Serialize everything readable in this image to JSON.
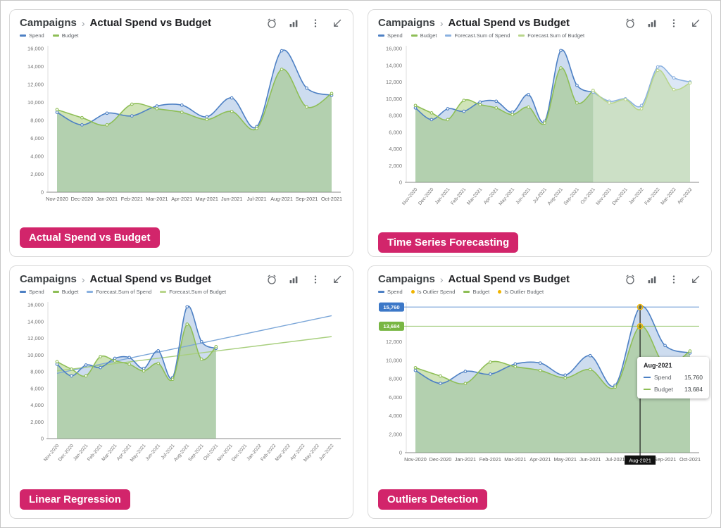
{
  "theme": {
    "accent": "#d2256b",
    "icon_color": "#5f6368",
    "axis_text_color": "#757575",
    "axis_line_color": "#b0b0b0",
    "spend_color": "#4d80c4",
    "budget_color": "#8ebe56",
    "forecast_spend_color": "#8ab1e0",
    "forecast_budget_color": "#b9d68c",
    "outlier_color": "#f0b400"
  },
  "toolbar_icons": [
    "alert-icon",
    "column-chart-icon",
    "more-options-icon",
    "expand-icon"
  ],
  "panels": [
    {
      "breadcrumb": "Campaigns",
      "separator": "›",
      "title": "Actual Spend vs Budget",
      "badge": "Actual Spend vs Budget",
      "legend": [
        {
          "label": "Spend",
          "color": "#4d80c4",
          "shape": "dash"
        },
        {
          "label": "Budget",
          "color": "#8ebe56",
          "shape": "dash"
        }
      ]
    },
    {
      "breadcrumb": "Campaigns",
      "separator": "›",
      "title": "Actual Spend vs Budget",
      "badge": "Time Series Forecasting",
      "legend": [
        {
          "label": "Spend",
          "color": "#4d80c4",
          "shape": "dash"
        },
        {
          "label": "Budget",
          "color": "#8ebe56",
          "shape": "dash"
        },
        {
          "label": "Forecast.Sum of Spend",
          "color": "#8ab1e0",
          "shape": "dash"
        },
        {
          "label": "Forecast.Sum of Budget",
          "color": "#b9d68c",
          "shape": "dash"
        }
      ]
    },
    {
      "breadcrumb": "Campaigns",
      "separator": "›",
      "title": "Actual Spend vs Budget",
      "badge": "Linear Regression",
      "legend": [
        {
          "label": "Spend",
          "color": "#4d80c4",
          "shape": "dash"
        },
        {
          "label": "Budget",
          "color": "#8ebe56",
          "shape": "dash"
        },
        {
          "label": "Forecast.Sum of Spend",
          "color": "#8ab1e0",
          "shape": "dash"
        },
        {
          "label": "Forecast.Sum of Budget",
          "color": "#b9d68c",
          "shape": "dash"
        }
      ]
    },
    {
      "breadcrumb": "Campaigns",
      "separator": "›",
      "title": "Actual Spend vs Budget",
      "badge": "Outliers Detection",
      "legend": [
        {
          "label": "Spend",
          "color": "#4d80c4",
          "shape": "dash"
        },
        {
          "label": "Is Outlier Spend",
          "color": "#f0b400",
          "shape": "dot"
        },
        {
          "label": "Budget",
          "color": "#8ebe56",
          "shape": "dash"
        },
        {
          "label": "Is Outlier Budget",
          "color": "#f0b400",
          "shape": "dot"
        }
      ]
    }
  ],
  "chart_data": [
    {
      "type": "area",
      "title": "Actual Spend vs Budget",
      "categories": [
        "Nov-2020",
        "Dec-2020",
        "Jan-2021",
        "Feb-2021",
        "Mar-2021",
        "Apr-2021",
        "May-2021",
        "Jun-2021",
        "Jul-2021",
        "Aug-2021",
        "Sep-2021",
        "Oct-2021"
      ],
      "series": [
        {
          "name": "Spend",
          "color": "#4d80c4",
          "fill": "rgba(77,128,196,0.28)",
          "values": [
            8900,
            7500,
            8800,
            8500,
            9600,
            9700,
            8400,
            10500,
            7300,
            15760,
            11600,
            10800
          ]
        },
        {
          "name": "Budget",
          "color": "#8ebe56",
          "fill": "rgba(142,190,86,0.42)",
          "values": [
            9200,
            8300,
            7500,
            9800,
            9300,
            8900,
            8100,
            9000,
            7100,
            13684,
            9500,
            11000
          ]
        }
      ],
      "ylim": [
        0,
        16000
      ],
      "ytick": 2000,
      "grid": false,
      "legend_position": "top-left",
      "x_label_rotation": 0
    },
    {
      "type": "area",
      "title": "Time Series Forecasting",
      "categories": [
        "Nov-2020",
        "Dec-2020",
        "Jan-2021",
        "Feb-2021",
        "Mar-2021",
        "Apr-2021",
        "May-2021",
        "Jun-2021",
        "Jul-2021",
        "Aug-2021",
        "Sep-2021",
        "Oct-2021",
        "Nov-2021",
        "Dec-2021",
        "Jan-2022",
        "Feb-2022",
        "Mar-2022",
        "Apr-2022"
      ],
      "series": [
        {
          "name": "Spend",
          "color": "#4d80c4",
          "fill": "rgba(77,128,196,0.28)",
          "values": [
            8900,
            7500,
            8800,
            8500,
            9600,
            9700,
            8400,
            10500,
            7300,
            15760,
            11600,
            10800,
            null,
            null,
            null,
            null,
            null,
            null
          ]
        },
        {
          "name": "Budget",
          "color": "#8ebe56",
          "fill": "rgba(142,190,86,0.42)",
          "values": [
            9200,
            8300,
            7500,
            9800,
            9300,
            8900,
            8100,
            9000,
            7100,
            13684,
            9500,
            11000,
            null,
            null,
            null,
            null,
            null,
            null
          ]
        },
        {
          "name": "Forecast.Sum of Spend",
          "color": "#8ab1e0",
          "fill": "rgba(138,177,224,0.30)",
          "values": [
            null,
            null,
            null,
            null,
            null,
            null,
            null,
            null,
            null,
            null,
            null,
            10800,
            9700,
            10000,
            9200,
            13800,
            12500,
            12000
          ]
        },
        {
          "name": "Forecast.Sum of Budget",
          "color": "#b9d68c",
          "fill": "rgba(185,214,140,0.45)",
          "values": [
            null,
            null,
            null,
            null,
            null,
            null,
            null,
            null,
            null,
            null,
            null,
            11000,
            9500,
            9900,
            8800,
            13400,
            11100,
            11900
          ]
        }
      ],
      "ylim": [
        0,
        16000
      ],
      "ytick": 2000,
      "grid": false,
      "legend_position": "top-left",
      "x_label_rotation": -50
    },
    {
      "type": "area",
      "title": "Linear Regression",
      "categories": [
        "Nov-2020",
        "Dec-2020",
        "Jan-2021",
        "Feb-2021",
        "Mar-2021",
        "Apr-2021",
        "May-2021",
        "Jun-2021",
        "Jul-2021",
        "Aug-2021",
        "Sep-2021",
        "Oct-2021",
        "Nov-2021",
        "Dec-2021",
        "Jan-2022",
        "Feb-2022",
        "Mar-2022",
        "Apr-2022",
        "May-2022",
        "Jun-2022"
      ],
      "series": [
        {
          "name": "Spend",
          "color": "#4d80c4",
          "fill": "rgba(77,128,196,0.28)",
          "values": [
            8900,
            7500,
            8800,
            8500,
            9600,
            9700,
            8400,
            10500,
            7300,
            15760,
            11600,
            10800,
            null,
            null,
            null,
            null,
            null,
            null,
            null,
            null
          ]
        },
        {
          "name": "Budget",
          "color": "#8ebe56",
          "fill": "rgba(142,190,86,0.42)",
          "values": [
            9200,
            8300,
            7500,
            9800,
            9300,
            8900,
            8100,
            9000,
            7100,
            13684,
            9500,
            11000,
            null,
            null,
            null,
            null,
            null,
            null,
            null,
            null
          ]
        },
        {
          "name": "Forecast.Sum of Spend",
          "color": "#7ba6d8",
          "straight": {
            "start": 7800,
            "end": 14700
          }
        },
        {
          "name": "Forecast.Sum of Budget",
          "color": "#a8cf7e",
          "straight": {
            "start": 8100,
            "end": 12200
          }
        }
      ],
      "ylim": [
        0,
        16000
      ],
      "ytick": 2000,
      "grid": false,
      "legend_position": "top-left",
      "x_label_rotation": -50
    },
    {
      "type": "area",
      "title": "Outliers Detection",
      "categories": [
        "Nov-2020",
        "Dec-2020",
        "Jan-2021",
        "Feb-2021",
        "Mar-2021",
        "Apr-2021",
        "May-2021",
        "Jun-2021",
        "Jul-2021",
        "Aug-2021",
        "Sep-2021",
        "Oct-2021"
      ],
      "series": [
        {
          "name": "Spend",
          "color": "#4d80c4",
          "fill": "rgba(77,128,196,0.28)",
          "values": [
            8900,
            7500,
            8800,
            8500,
            9600,
            9700,
            8400,
            10500,
            7300,
            15760,
            11600,
            10800
          ]
        },
        {
          "name": "Budget",
          "color": "#8ebe56",
          "fill": "rgba(142,190,86,0.42)",
          "values": [
            9200,
            8300,
            7500,
            9800,
            9300,
            8900,
            8100,
            9000,
            7100,
            13684,
            9500,
            11000
          ]
        }
      ],
      "ylim": [
        0,
        16000
      ],
      "ytick": 2000,
      "grid": false,
      "legend_position": "top-left",
      "x_label_rotation": 0,
      "ref_lines": [
        {
          "value": 15760,
          "label": "15,760",
          "color": "#3c78c8"
        },
        {
          "value": 13684,
          "label": "13,684",
          "color": "#78b643"
        }
      ],
      "outlier_points": [
        {
          "category": "Aug-2021",
          "value": 15760
        },
        {
          "category": "Aug-2021",
          "value": 13684
        }
      ],
      "marker_category": "Aug-2021",
      "tooltip": {
        "title": "Aug-2021",
        "rows": [
          {
            "label": "Spend",
            "value": "15,760",
            "color": "#4d80c4"
          },
          {
            "label": "Budget",
            "value": "13,684",
            "color": "#8ebe56"
          }
        ]
      }
    }
  ]
}
